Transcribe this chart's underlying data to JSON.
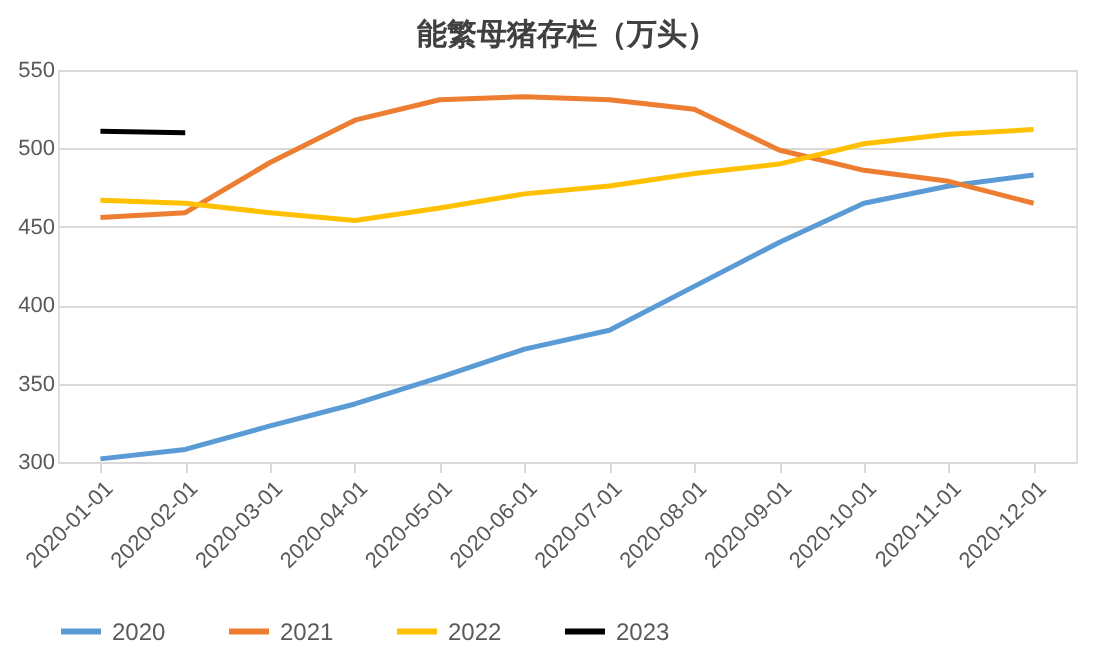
{
  "chart_data": {
    "type": "line",
    "title": "能繁母猪存栏（万头）",
    "categories": [
      "2020-01-01",
      "2020-02-01",
      "2020-03-01",
      "2020-04-01",
      "2020-05-01",
      "2020-06-01",
      "2020-07-01",
      "2020-08-01",
      "2020-09-01",
      "2020-10-01",
      "2020-11-01",
      "2020-12-01"
    ],
    "series": [
      {
        "name": "2020",
        "color": "#5b9bd5",
        "values": [
          302,
          308,
          323,
          337,
          354,
          372,
          384,
          412,
          440,
          465,
          476,
          483
        ]
      },
      {
        "name": "2021",
        "color": "#ed7d31",
        "values": [
          456,
          459,
          491,
          518,
          531,
          533,
          531,
          525,
          499,
          486,
          479,
          465
        ]
      },
      {
        "name": "2022",
        "color": "#ffc000",
        "values": [
          467,
          465,
          459,
          454,
          462,
          471,
          476,
          484,
          490,
          503,
          509,
          512
        ]
      },
      {
        "name": "2023",
        "color": "#000000",
        "values": [
          511,
          510,
          null,
          null,
          null,
          null,
          null,
          null,
          null,
          null,
          null,
          null
        ]
      }
    ],
    "ylim": [
      300,
      550
    ],
    "yticks": [
      300,
      350,
      400,
      450,
      500,
      550
    ],
    "grid": "y",
    "legend": "bottom",
    "marker": "none",
    "line_style": "solid"
  }
}
